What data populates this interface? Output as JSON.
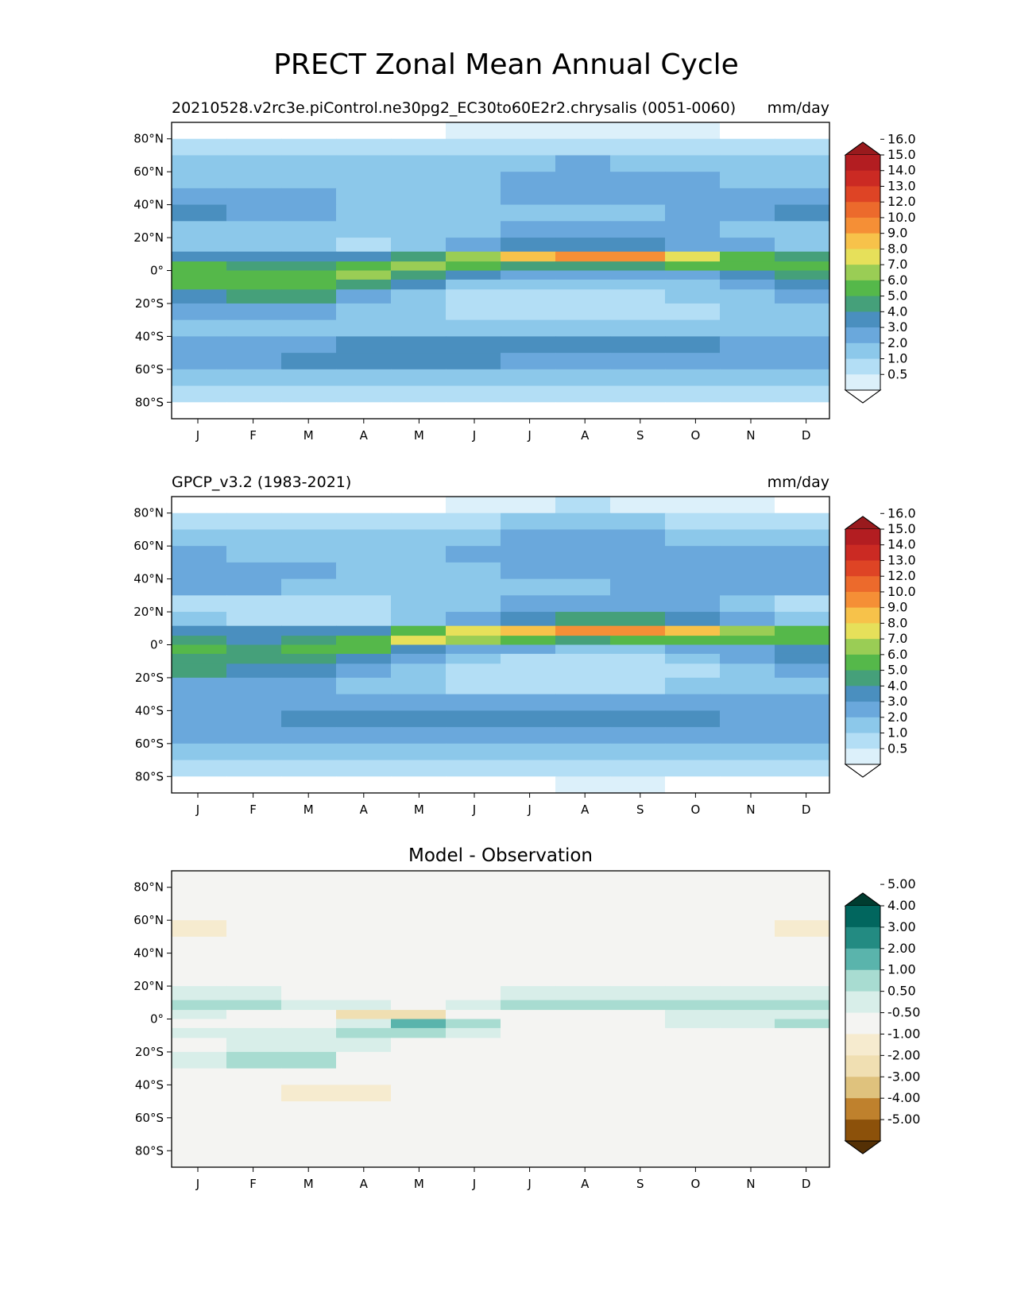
{
  "title": "PRECT Zonal Mean Annual Cycle",
  "chart_data": [
    {
      "type": "heatmap",
      "title_left": "20210528.v2rc3e.piControl.ne30pg2_EC30to60E2r2.chrysalis (0051-0060)",
      "title_right": "mm/day",
      "title_center": "",
      "x": [
        "J",
        "F",
        "M",
        "A",
        "M",
        "J",
        "J",
        "A",
        "S",
        "O",
        "N",
        "D"
      ],
      "y_ticks": [
        "80°N",
        "60°N",
        "40°N",
        "20°N",
        "0°",
        "20°S",
        "40°S",
        "60°S",
        "80°S"
      ],
      "y_tick_values": [
        80,
        60,
        40,
        20,
        0,
        -20,
        -40,
        -60,
        -80
      ],
      "ylim": [
        -90,
        90
      ],
      "levels": [
        0.5,
        1.0,
        2.0,
        3.0,
        4.0,
        5.0,
        6.0,
        7.0,
        8.0,
        9.0,
        10.0,
        12.0,
        13.0,
        14.0,
        15.0,
        16.0
      ],
      "level_labels": [
        "0.5",
        "1.0",
        "2.0",
        "3.0",
        "4.0",
        "5.0",
        "6.0",
        "7.0",
        "8.0",
        "9.0",
        "10.0",
        "12.0",
        "13.0",
        "14.0",
        "15.0",
        "16.0"
      ],
      "colors": [
        "#ffffff",
        "#dcf0fa",
        "#b3def5",
        "#8cc8ea",
        "#6aa8dc",
        "#4a8fbf",
        "#45a07a",
        "#55b84a",
        "#9acd55",
        "#e6e05a",
        "#f7c24a",
        "#f58f36",
        "#ec6a2c",
        "#de4425",
        "#cb2a23",
        "#b31d21",
        "#991a1d"
      ],
      "lat_centers": [
        85,
        75,
        65,
        55,
        45,
        35,
        25,
        15,
        8,
        3,
        -3,
        -8,
        -15,
        -25,
        -35,
        -45,
        -55,
        -65,
        -75,
        -85
      ],
      "values": [
        [
          0.3,
          0.3,
          0.3,
          0.3,
          0.4,
          0.6,
          0.5,
          0.6,
          0.6,
          0.5,
          0.4,
          0.3
        ],
        [
          1.2,
          1.2,
          1.1,
          1.1,
          1.2,
          1.5,
          1.7,
          1.8,
          1.8,
          1.6,
          1.3,
          1.2
        ],
        [
          2.2,
          2.1,
          2.0,
          2.0,
          2.2,
          2.6,
          2.9,
          3.0,
          2.9,
          2.6,
          2.3,
          2.2
        ],
        [
          2.6,
          2.5,
          2.4,
          2.3,
          2.5,
          2.9,
          3.1,
          3.2,
          3.1,
          3.0,
          2.8,
          2.7
        ],
        [
          3.3,
          3.2,
          3.0,
          2.7,
          2.6,
          2.8,
          3.0,
          3.1,
          3.1,
          3.2,
          3.4,
          3.4
        ],
        [
          4.2,
          3.8,
          3.5,
          2.9,
          2.5,
          2.4,
          2.6,
          2.8,
          2.9,
          3.1,
          3.6,
          4.1
        ],
        [
          2.5,
          2.3,
          2.3,
          2.2,
          2.3,
          2.6,
          3.2,
          3.5,
          3.4,
          3.1,
          2.8,
          2.6
        ],
        [
          2.4,
          2.2,
          2.0,
          1.9,
          2.2,
          3.0,
          4.0,
          4.8,
          4.6,
          3.8,
          3.0,
          2.6
        ],
        [
          4.6,
          4.2,
          4.1,
          4.3,
          5.8,
          7.5,
          9.2,
          10.5,
          10.0,
          8.2,
          6.6,
          5.6
        ],
        [
          6.4,
          5.6,
          5.8,
          6.5,
          7.2,
          6.6,
          5.8,
          5.4,
          5.6,
          6.2,
          6.2,
          6.6
        ],
        [
          6.8,
          6.4,
          6.9,
          7.1,
          5.6,
          4.2,
          3.4,
          3.2,
          3.3,
          3.9,
          4.6,
          5.6
        ],
        [
          6.2,
          6.9,
          6.6,
          5.6,
          4.2,
          2.9,
          2.3,
          2.1,
          2.2,
          2.6,
          3.3,
          4.5
        ],
        [
          4.6,
          5.6,
          5.0,
          3.5,
          2.6,
          1.8,
          1.4,
          1.3,
          1.5,
          2.0,
          2.7,
          3.6
        ],
        [
          3.2,
          3.5,
          3.2,
          2.6,
          2.2,
          1.6,
          1.5,
          1.2,
          1.5,
          1.8,
          2.2,
          2.8
        ],
        [
          2.7,
          2.6,
          2.6,
          2.6,
          2.8,
          2.6,
          2.6,
          2.6,
          2.6,
          2.4,
          2.4,
          2.5
        ],
        [
          3.4,
          3.4,
          3.6,
          4.0,
          4.4,
          4.6,
          4.7,
          4.5,
          4.2,
          4.1,
          3.7,
          3.5
        ],
        [
          3.6,
          3.8,
          4.0,
          4.1,
          4.2,
          4.1,
          3.9,
          3.7,
          3.6,
          3.5,
          3.4,
          3.5
        ],
        [
          2.7,
          2.8,
          2.9,
          2.9,
          2.9,
          2.8,
          2.7,
          2.7,
          2.6,
          2.6,
          2.6,
          2.7
        ],
        [
          1.3,
          1.3,
          1.4,
          1.4,
          1.4,
          1.5,
          1.5,
          1.5,
          1.4,
          1.4,
          1.3,
          1.3
        ],
        [
          0.4,
          0.4,
          0.4,
          0.4,
          0.4,
          0.4,
          0.4,
          0.4,
          0.4,
          0.4,
          0.4,
          0.4
        ]
      ],
      "colorbar_extend": "both"
    },
    {
      "type": "heatmap",
      "title_left": "GPCP_v3.2 (1983-2021)",
      "title_right": "mm/day",
      "title_center": "",
      "x": [
        "J",
        "F",
        "M",
        "A",
        "M",
        "J",
        "J",
        "A",
        "S",
        "O",
        "N",
        "D"
      ],
      "y_ticks": [
        "80°N",
        "60°N",
        "40°N",
        "20°N",
        "0°",
        "20°S",
        "40°S",
        "60°S",
        "80°S"
      ],
      "y_tick_values": [
        80,
        60,
        40,
        20,
        0,
        -20,
        -40,
        -60,
        -80
      ],
      "ylim": [
        -90,
        90
      ],
      "levels": [
        0.5,
        1.0,
        2.0,
        3.0,
        4.0,
        5.0,
        6.0,
        7.0,
        8.0,
        9.0,
        10.0,
        12.0,
        13.0,
        14.0,
        15.0,
        16.0
      ],
      "level_labels": [
        "0.5",
        "1.0",
        "2.0",
        "3.0",
        "4.0",
        "5.0",
        "6.0",
        "7.0",
        "8.0",
        "9.0",
        "10.0",
        "12.0",
        "13.0",
        "14.0",
        "15.0",
        "16.0"
      ],
      "colors": [
        "#ffffff",
        "#dcf0fa",
        "#b3def5",
        "#8cc8ea",
        "#6aa8dc",
        "#4a8fbf",
        "#45a07a",
        "#55b84a",
        "#9acd55",
        "#e6e05a",
        "#f7c24a",
        "#f58f36",
        "#ec6a2c",
        "#de4425",
        "#cb2a23",
        "#b31d21",
        "#991a1d"
      ],
      "lat_centers": [
        85,
        75,
        65,
        55,
        45,
        35,
        25,
        15,
        8,
        3,
        -3,
        -8,
        -15,
        -25,
        -35,
        -45,
        -55,
        -65,
        -75,
        -85
      ],
      "values": [
        [
          0.3,
          0.3,
          0.3,
          0.3,
          0.3,
          0.6,
          0.7,
          1.2,
          0.8,
          0.6,
          0.5,
          0.3
        ],
        [
          1.5,
          1.5,
          1.4,
          1.4,
          1.5,
          1.8,
          2.0,
          2.2,
          2.1,
          1.8,
          1.6,
          1.5
        ],
        [
          2.6,
          2.5,
          2.4,
          2.3,
          2.5,
          2.8,
          3.0,
          3.1,
          3.0,
          2.9,
          2.8,
          2.7
        ],
        [
          3.0,
          2.9,
          2.7,
          2.6,
          2.7,
          3.0,
          3.1,
          3.1,
          3.1,
          3.2,
          3.3,
          3.3
        ],
        [
          3.7,
          3.6,
          3.2,
          2.9,
          2.8,
          2.9,
          3.0,
          3.1,
          3.2,
          3.8,
          3.9,
          3.8
        ],
        [
          3.3,
          3.1,
          2.9,
          2.6,
          2.4,
          2.5,
          2.7,
          2.9,
          3.0,
          3.3,
          3.4,
          3.4
        ],
        [
          1.6,
          1.3,
          1.2,
          1.4,
          2.0,
          2.6,
          3.3,
          3.6,
          3.5,
          3.0,
          2.2,
          1.8
        ],
        [
          2.0,
          1.8,
          1.6,
          1.8,
          2.5,
          3.4,
          4.6,
          5.2,
          5.0,
          4.2,
          3.2,
          2.5
        ],
        [
          4.2,
          4.0,
          4.2,
          4.6,
          6.4,
          8.8,
          9.6,
          10.6,
          10.0,
          9.0,
          7.6,
          6.2
        ],
        [
          5.0,
          4.6,
          5.0,
          6.4,
          8.2,
          7.4,
          6.2,
          5.8,
          6.0,
          6.2,
          6.6,
          6.2
        ],
        [
          6.0,
          5.8,
          6.6,
          6.0,
          4.2,
          3.4,
          3.2,
          2.8,
          2.9,
          3.4,
          3.8,
          4.6
        ],
        [
          5.8,
          5.8,
          5.4,
          4.4,
          3.0,
          2.2,
          1.8,
          1.6,
          1.7,
          2.1,
          3.0,
          4.2
        ],
        [
          5.0,
          4.9,
          4.4,
          3.4,
          2.4,
          1.7,
          1.4,
          1.2,
          1.3,
          1.7,
          2.4,
          3.5
        ],
        [
          3.1,
          3.2,
          3.0,
          2.6,
          2.2,
          1.8,
          1.6,
          1.5,
          1.6,
          2.0,
          2.4,
          2.9
        ],
        [
          3.0,
          3.0,
          3.0,
          3.2,
          3.4,
          3.4,
          3.3,
          3.1,
          3.0,
          3.0,
          3.0,
          3.0
        ],
        [
          3.8,
          3.9,
          4.0,
          4.2,
          4.3,
          4.4,
          4.4,
          4.3,
          4.1,
          4.0,
          3.9,
          3.8
        ],
        [
          3.4,
          3.6,
          3.8,
          3.9,
          3.8,
          3.6,
          3.5,
          3.4,
          3.4,
          3.4,
          3.4,
          3.4
        ],
        [
          2.5,
          2.6,
          2.7,
          2.8,
          2.8,
          2.8,
          2.7,
          2.6,
          2.6,
          2.6,
          2.5,
          2.5
        ],
        [
          1.4,
          1.4,
          1.4,
          1.4,
          1.4,
          1.4,
          1.5,
          1.6,
          1.5,
          1.4,
          1.4,
          1.4
        ],
        [
          0.3,
          0.3,
          0.3,
          0.3,
          0.3,
          0.3,
          0.4,
          0.7,
          0.6,
          0.3,
          0.3,
          0.3
        ]
      ],
      "colorbar_extend": "both"
    },
    {
      "type": "heatmap",
      "title_left": "",
      "title_right": "",
      "title_center": "Model - Observation",
      "x": [
        "J",
        "F",
        "M",
        "A",
        "M",
        "J",
        "J",
        "A",
        "S",
        "O",
        "N",
        "D"
      ],
      "y_ticks": [
        "80°N",
        "60°N",
        "40°N",
        "20°N",
        "0°",
        "20°S",
        "40°S",
        "60°S",
        "80°S"
      ],
      "y_tick_values": [
        80,
        60,
        40,
        20,
        0,
        -20,
        -40,
        -60,
        -80
      ],
      "ylim": [
        -90,
        90
      ],
      "levels": [
        -5.0,
        -4.0,
        -3.0,
        -2.0,
        -1.0,
        -0.5,
        0.5,
        1.0,
        2.0,
        3.0,
        4.0,
        5.0
      ],
      "level_labels": [
        "-5.00",
        "-4.00",
        "-3.00",
        "-2.00",
        "-1.00",
        "-0.50",
        "0.50",
        "1.00",
        "2.00",
        "3.00",
        "4.00",
        "5.00"
      ],
      "colors": [
        "#543005",
        "#8c510a",
        "#bf812d",
        "#dfc27d",
        "#f0dfb2",
        "#f6ebcf",
        "#f4f4f2",
        "#d8eee9",
        "#a8dcd1",
        "#5ab4ac",
        "#238b82",
        "#01665e",
        "#003c30"
      ],
      "lat_centers": [
        85,
        75,
        65,
        55,
        45,
        35,
        25,
        15,
        8,
        3,
        -3,
        -8,
        -15,
        -25,
        -35,
        -45,
        -55,
        -65,
        -75,
        -85
      ],
      "values": [
        [
          0,
          0,
          0,
          0,
          0,
          0,
          0,
          0,
          0,
          0,
          0,
          0
        ],
        [
          0,
          0,
          0,
          0,
          0,
          0,
          0,
          0,
          0,
          0,
          0,
          0
        ],
        [
          0,
          0,
          0,
          0,
          0,
          0,
          0,
          0,
          0,
          0,
          0,
          0
        ],
        [
          -0.7,
          0,
          0,
          0,
          0,
          0,
          0,
          0,
          0,
          0,
          0,
          -0.7
        ],
        [
          0,
          0,
          0,
          0,
          0,
          0,
          0,
          0,
          0,
          0,
          0,
          0
        ],
        [
          0,
          0,
          0,
          0,
          0,
          0,
          0,
          0,
          0,
          0,
          0,
          0
        ],
        [
          0,
          0,
          0,
          0,
          0,
          0,
          0,
          0,
          0,
          0,
          0,
          0
        ],
        [
          0.7,
          0.6,
          0,
          0,
          0,
          0,
          0.6,
          0.7,
          0.7,
          0.8,
          0.8,
          0.7
        ],
        [
          1.2,
          1.0,
          0.6,
          0.6,
          0,
          0.7,
          1.2,
          1.3,
          1.5,
          1.4,
          1.3,
          1.2
        ],
        [
          0.6,
          0,
          0,
          -1.5,
          -1.2,
          0,
          0,
          0,
          0,
          0.6,
          0.6,
          0.6
        ],
        [
          0,
          0,
          0,
          0.8,
          2.4,
          1.6,
          0,
          0,
          0,
          0.6,
          0.8,
          1.4
        ],
        [
          0.7,
          0.7,
          0.7,
          1.0,
          1.0,
          0.7,
          0,
          0,
          0,
          0,
          0,
          0
        ],
        [
          0,
          0.8,
          0.8,
          0.6,
          0,
          0,
          0,
          0,
          0,
          0,
          0,
          0
        ],
        [
          0.6,
          1.0,
          1.1,
          0,
          0,
          0,
          0,
          0,
          0,
          0,
          0,
          0
        ],
        [
          0,
          0,
          0,
          0,
          0,
          0,
          0,
          0,
          0,
          0,
          0,
          0
        ],
        [
          0,
          0,
          -0.8,
          -0.9,
          0,
          0,
          0,
          0,
          0,
          0,
          0,
          0
        ],
        [
          0,
          0,
          0,
          0,
          0,
          0,
          0,
          0,
          0,
          0,
          0,
          0
        ],
        [
          0,
          0,
          0,
          0,
          0,
          0,
          0,
          0,
          0,
          0,
          0,
          0
        ],
        [
          0,
          0,
          0,
          0,
          0,
          0,
          0,
          0,
          0,
          0,
          0,
          0
        ],
        [
          0,
          0,
          0,
          0,
          0,
          0,
          0,
          0,
          0,
          0,
          0,
          0
        ]
      ],
      "colorbar_extend": "both"
    }
  ]
}
